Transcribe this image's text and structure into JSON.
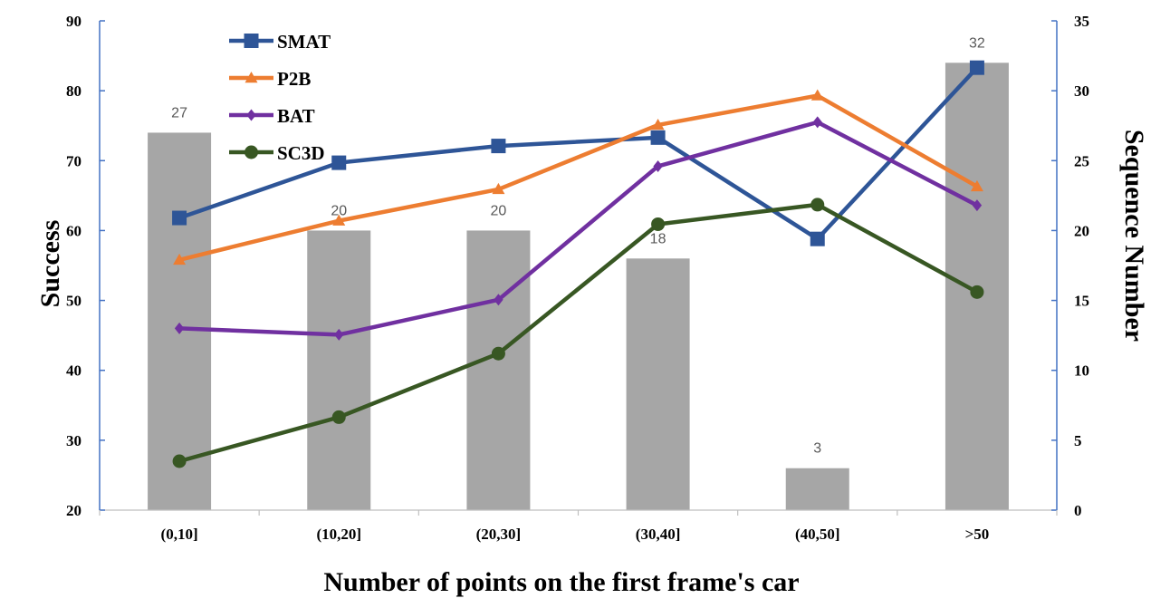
{
  "chart_data": {
    "type": "bar",
    "xlabel": "Number of points on the first frame's car",
    "ylabel": "Success",
    "y2label": "Sequence Number",
    "categories": [
      "(0,10]",
      "(10,20]",
      "(20,30]",
      "(30,40]",
      "(40,50]",
      ">50"
    ],
    "ylim": [
      20,
      90
    ],
    "yticks": [
      20,
      30,
      40,
      50,
      60,
      70,
      80,
      90
    ],
    "y2lim": [
      0,
      35
    ],
    "y2ticks": [
      0,
      5,
      10,
      15,
      20,
      25,
      30,
      35
    ],
    "bars": {
      "axis": "secondary",
      "color": "#a6a6a6",
      "values": [
        27,
        20,
        20,
        18,
        3,
        32
      ],
      "labels": [
        "27",
        "20",
        "20",
        "18",
        "3",
        "32"
      ]
    },
    "series": [
      {
        "name": "SMAT",
        "type": "line",
        "marker": "square",
        "color": "#2e5597",
        "values": [
          61.8,
          69.7,
          72.1,
          73.3,
          58.8,
          83.3
        ]
      },
      {
        "name": "P2B",
        "type": "line",
        "marker": "triangle",
        "color": "#ed7d31",
        "values": [
          55.8,
          61.4,
          65.9,
          75.1,
          79.3,
          66.3
        ]
      },
      {
        "name": "BAT",
        "type": "line",
        "marker": "diamond",
        "color": "#7030a0",
        "values": [
          46.0,
          45.1,
          50.1,
          69.2,
          75.5,
          63.6
        ]
      },
      {
        "name": "SC3D",
        "type": "line",
        "marker": "circle",
        "color": "#385723",
        "values": [
          27.0,
          33.3,
          42.4,
          60.9,
          63.7,
          51.2
        ]
      }
    ],
    "grid": false,
    "legend_position": "top-left"
  }
}
